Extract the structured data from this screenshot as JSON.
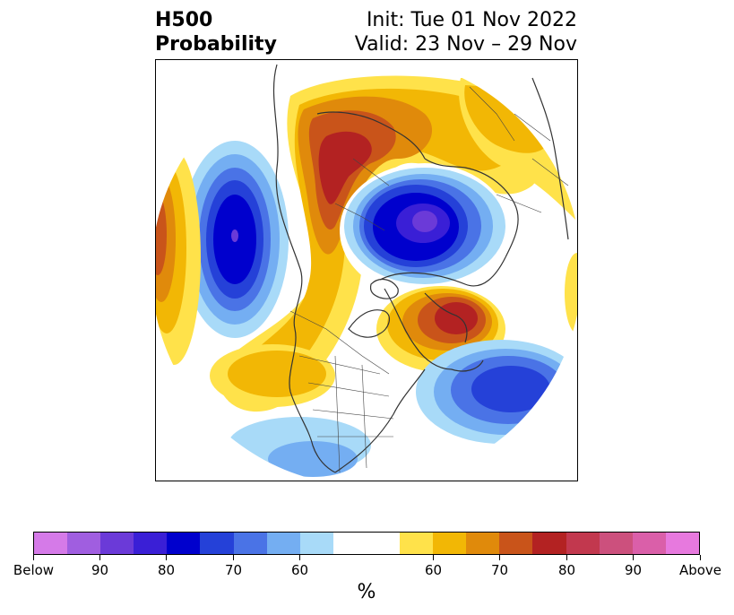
{
  "title": {
    "variable": "H500",
    "product": "Probability",
    "init": "Init: Tue 01 Nov 2022",
    "valid": "Valid: 23 Nov – 29 Nov"
  },
  "map": {
    "projection": "north-polar-stereographic",
    "region": "Northern Hemisphere / North America",
    "features": [
      "coastlines",
      "country borders",
      "state/province borders",
      "probability shading"
    ]
  },
  "colorbar": {
    "unit_label": "%",
    "colors": [
      "#d57ae8",
      "#a05ee0",
      "#6b3ad8",
      "#3a1fd6",
      "#0000cd",
      "#2541d8",
      "#4a73e6",
      "#74aef2",
      "#a8daf8",
      "#ffffff",
      "#ffffff",
      "#ffe24a",
      "#f2b705",
      "#e08a0b",
      "#c9541a",
      "#b32222",
      "#c2384e",
      "#cc507d",
      "#da5fa9",
      "#e779de"
    ],
    "tick_labels": [
      "Below",
      "90",
      "80",
      "70",
      "60",
      "60",
      "70",
      "80",
      "90",
      "Above"
    ]
  }
}
